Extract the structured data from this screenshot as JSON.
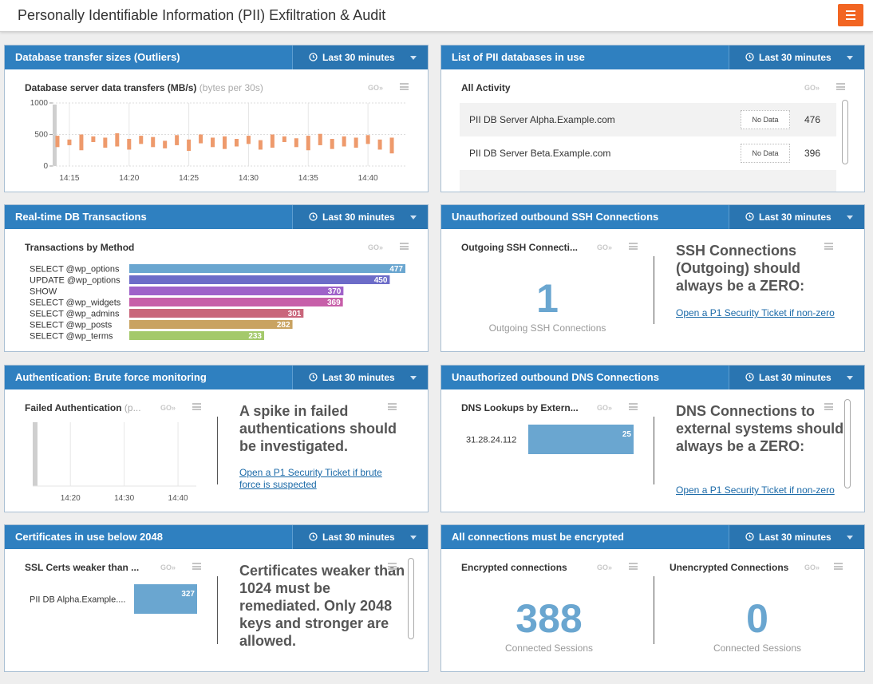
{
  "header": {
    "title": "Personally Identifiable Information (PII) Exfiltration & Audit"
  },
  "ui": {
    "go": "GO»"
  },
  "panels": [
    {
      "title": "Database transfer sizes (Outliers)",
      "time_range": "Last 30 minutes",
      "chart_data": {
        "type": "range_bar",
        "title": "Database server data transfers (MB/s)",
        "subtitle": "(bytes per 30s)",
        "color": "#ee9a6c",
        "x": [
          854,
          855,
          856,
          857,
          858,
          859,
          860,
          861,
          862,
          863,
          864,
          865,
          866,
          867,
          868,
          869,
          870,
          871,
          872,
          873,
          874,
          875,
          876,
          877,
          878,
          879,
          880,
          881,
          882
        ],
        "low": [
          300,
          330,
          250,
          380,
          290,
          310,
          260,
          350,
          300,
          280,
          330,
          240,
          360,
          300,
          270,
          310,
          350,
          260,
          290,
          380,
          300,
          250,
          330,
          270,
          310,
          290,
          350,
          260,
          200
        ],
        "high": [
          480,
          420,
          500,
          470,
          450,
          520,
          430,
          480,
          460,
          400,
          490,
          420,
          500,
          450,
          470,
          430,
          480,
          410,
          500,
          470,
          440,
          480,
          510,
          430,
          470,
          450,
          490,
          420,
          450
        ],
        "xlim": [
          853.6,
          883.2
        ],
        "xticks": [
          {
            "value": 855,
            "label": "14:15"
          },
          {
            "value": 860,
            "label": "14:20"
          },
          {
            "value": 865,
            "label": "14:25"
          },
          {
            "value": 870,
            "label": "14:30"
          },
          {
            "value": 875,
            "label": "14:35"
          },
          {
            "value": 880,
            "label": "14:40"
          }
        ],
        "ylim": [
          0,
          1000
        ],
        "yticks": [
          0,
          500,
          1000
        ],
        "grid": true
      }
    },
    {
      "title": "List of PII databases in use",
      "time_range": "Last 30 minutes",
      "list": {
        "title": "All Activity",
        "rows": [
          {
            "name": "PII DB Server Alpha.Example.com",
            "status": "No Data",
            "count": 476
          },
          {
            "name": "PII DB Server Beta.Example.com",
            "status": "No Data",
            "count": 396
          }
        ]
      }
    },
    {
      "title": "Real-time DB Transactions",
      "time_range": "Last 30 minutes",
      "chart_data": {
        "type": "hbar",
        "title": "Transactions by Method",
        "categories": [
          "SELECT @wp_options",
          "UPDATE @wp_options",
          "SHOW",
          "SELECT @wp_widgets",
          "SELECT @wp_admins",
          "SELECT @wp_posts",
          "SELECT @wp_terms"
        ],
        "values": [
          477,
          450,
          370,
          369,
          301,
          282,
          233
        ],
        "colors": [
          "#6aa6d0",
          "#6c6cc8",
          "#9f62c9",
          "#c75fa9",
          "#c9667b",
          "#c9a361",
          "#a4c96b"
        ],
        "xlim": [
          0,
          477
        ]
      }
    },
    {
      "title": "Unauthorized outbound SSH Connections",
      "time_range": "Last 30 minutes",
      "stat": {
        "title": "Outgoing SSH Connecti...",
        "value": 1,
        "caption": "Outgoing SSH Connections"
      },
      "note": {
        "text": "SSH Connections (Outgoing) should always be a ZERO:",
        "link": "Open a P1 Security Ticket if non-zero"
      }
    },
    {
      "title": "Authentication: Brute force monitoring",
      "time_range": "Last 30 minutes",
      "chart_data": {
        "type": "line",
        "title": "Failed Authentication",
        "subtitle": "(p...",
        "xlim": [
          853,
          883.4
        ],
        "xticks": [
          {
            "value": 860,
            "label": "14:20"
          },
          {
            "value": 870,
            "label": "14:30"
          },
          {
            "value": 880,
            "label": "14:40"
          }
        ],
        "grid": true
      },
      "note": {
        "text": "A spike in failed authentications should be investigated.",
        "link": "Open a P1 Security Ticket if brute force is suspected"
      }
    },
    {
      "title": "Unauthorized outbound DNS Connections",
      "time_range": "Last 30 minutes",
      "chart_data": {
        "type": "hbar",
        "title": "DNS Lookups by Extern...",
        "categories": [
          "31.28.24.112"
        ],
        "values": [
          25
        ],
        "color": "#6aa6d0",
        "xlim": [
          0,
          25
        ]
      },
      "note": {
        "text": "DNS Connections to external systems should always be a ZERO:",
        "link": "Open a P1 Security Ticket if non-zero"
      }
    },
    {
      "title": "Certificates in use below 2048",
      "time_range": "Last 30 minutes",
      "chart_data": {
        "type": "hbar",
        "title": "SSL Certs weaker than ...",
        "categories": [
          "PII DB Alpha.Example...."
        ],
        "values": [
          327
        ],
        "color": "#6aa6d0",
        "xlim": [
          0,
          327
        ]
      },
      "note": {
        "text": "Certificates weaker than 1024 must be remediated. Only 2048 keys and stronger are allowed."
      }
    },
    {
      "title": "All connections must be encrypted",
      "time_range": "Last 30 minutes",
      "stats": [
        {
          "title": "Encrypted connections",
          "value": 388,
          "caption": "Connected Sessions"
        },
        {
          "title": "Unencrypted Connections",
          "value": 0,
          "caption": "Connected Sessions"
        }
      ]
    }
  ]
}
